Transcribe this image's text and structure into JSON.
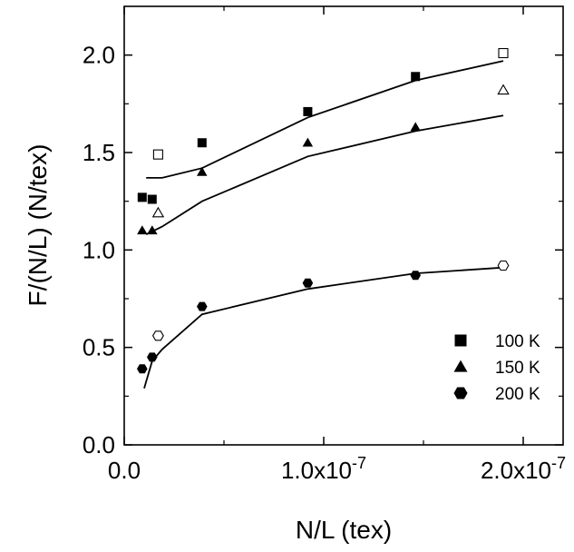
{
  "chart_data": {
    "type": "scatter",
    "xlabel": "N/L (tex)",
    "ylabel": "F/(N/L) (N/tex)",
    "xlim": [
      0,
      2.2e-07
    ],
    "ylim": [
      0.0,
      2.25
    ],
    "x_ticks": [
      {
        "value": 0,
        "label": "0.0",
        "exp": ""
      },
      {
        "value": 1e-07,
        "label": "1.0x10",
        "exp": "-7"
      },
      {
        "value": 2e-07,
        "label": "2.0x10",
        "exp": "-7"
      }
    ],
    "y_ticks": [
      {
        "value": 0.0,
        "label": "0.0"
      },
      {
        "value": 0.5,
        "label": "0.5"
      },
      {
        "value": 1.0,
        "label": "1.0"
      },
      {
        "value": 1.5,
        "label": "1.5"
      },
      {
        "value": 2.0,
        "label": "2.0"
      }
    ],
    "legend_position": "bottom-right",
    "series": [
      {
        "name": "100 K",
        "marker": "square",
        "points": [
          {
            "x": 9e-09,
            "y": 1.27,
            "filled": true
          },
          {
            "x": 1.4e-08,
            "y": 1.26,
            "filled": true
          },
          {
            "x": 1.7e-08,
            "y": 1.49,
            "filled": false
          },
          {
            "x": 3.9e-08,
            "y": 1.55,
            "filled": true
          },
          {
            "x": 9.2e-08,
            "y": 1.71,
            "filled": true
          },
          {
            "x": 1.46e-07,
            "y": 1.89,
            "filled": true
          },
          {
            "x": 1.9e-07,
            "y": 2.01,
            "filled": false
          }
        ],
        "fit": [
          [
            1.1e-08,
            1.37
          ],
          [
            1.9e-08,
            1.37
          ],
          [
            3.9e-08,
            1.42
          ],
          [
            9.2e-08,
            1.68
          ],
          [
            1.46e-07,
            1.87
          ],
          [
            1.9e-07,
            1.97
          ]
        ]
      },
      {
        "name": "150 K",
        "marker": "triangle",
        "points": [
          {
            "x": 9e-09,
            "y": 1.1,
            "filled": true
          },
          {
            "x": 1.4e-08,
            "y": 1.1,
            "filled": true
          },
          {
            "x": 1.7e-08,
            "y": 1.19,
            "filled": false
          },
          {
            "x": 3.9e-08,
            "y": 1.4,
            "filled": true
          },
          {
            "x": 9.2e-08,
            "y": 1.55,
            "filled": true
          },
          {
            "x": 1.46e-07,
            "y": 1.63,
            "filled": true
          },
          {
            "x": 1.9e-07,
            "y": 1.82,
            "filled": false
          }
        ],
        "fit": [
          [
            1.1e-08,
            1.08
          ],
          [
            1.9e-08,
            1.12
          ],
          [
            3.9e-08,
            1.25
          ],
          [
            9.2e-08,
            1.48
          ],
          [
            1.46e-07,
            1.61
          ],
          [
            1.9e-07,
            1.69
          ]
        ]
      },
      {
        "name": "200 K",
        "marker": "hexagon",
        "points": [
          {
            "x": 9e-09,
            "y": 0.39,
            "filled": true
          },
          {
            "x": 1.4e-08,
            "y": 0.45,
            "filled": true
          },
          {
            "x": 1.7e-08,
            "y": 0.56,
            "filled": false
          },
          {
            "x": 3.9e-08,
            "y": 0.71,
            "filled": true
          },
          {
            "x": 9.2e-08,
            "y": 0.83,
            "filled": true
          },
          {
            "x": 1.46e-07,
            "y": 0.87,
            "filled": true
          },
          {
            "x": 1.9e-07,
            "y": 0.92,
            "filled": false
          }
        ],
        "fit": [
          [
            1e-08,
            0.29
          ],
          [
            1.4e-08,
            0.43
          ],
          [
            1.9e-08,
            0.49
          ],
          [
            3.9e-08,
            0.67
          ],
          [
            9.2e-08,
            0.8
          ],
          [
            1.46e-07,
            0.88
          ],
          [
            1.9e-07,
            0.91
          ]
        ]
      }
    ]
  }
}
